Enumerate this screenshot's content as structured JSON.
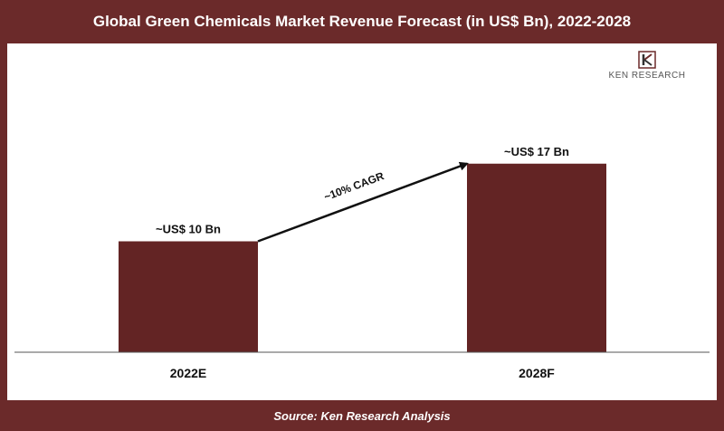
{
  "header": {
    "title": "Global Green Chemicals Market Revenue Forecast (in US$ Bn), 2022-2028"
  },
  "footer": {
    "source": "Source: Ken Research Analysis"
  },
  "logo": {
    "text": "KEN RESEARCH",
    "monogram": "K"
  },
  "colors": {
    "bar": "#632424",
    "frame": "#6b2a2a",
    "axis": "#555555",
    "text": "#111111"
  },
  "chart_data": {
    "type": "bar",
    "categories": [
      "2022E",
      "2028F"
    ],
    "values": [
      10,
      17
    ],
    "value_labels": [
      "~US$ 10 Bn",
      "~US$ 17 Bn"
    ],
    "title": "Global Green Chemicals Market Revenue Forecast (in US$ Bn), 2022-2028",
    "xlabel": "",
    "ylabel": "",
    "ylim": [
      0,
      20
    ],
    "grid": false,
    "annotation": {
      "text": "~10% CAGR",
      "type": "arrow",
      "from": "2022E",
      "to": "2028F"
    }
  }
}
